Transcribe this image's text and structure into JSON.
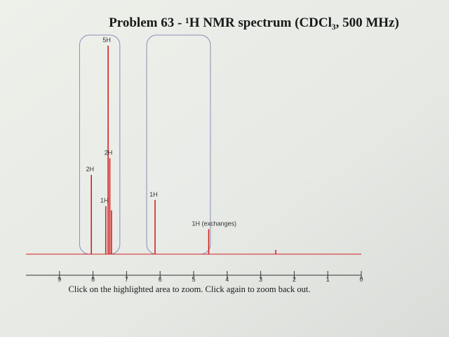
{
  "chart_data": {
    "type": "spectrum",
    "title": "Problem 63 - ¹H NMR spectrum (CDCl₃, 500 MHz)",
    "x": [
      8.05,
      7.62,
      7.55,
      7.5,
      7.45,
      6.15,
      4.55,
      2.55
    ],
    "series": [
      {
        "color": "#d42020",
        "values": [
          38,
          23,
          100,
          46,
          21,
          26,
          12,
          2
        ]
      }
    ],
    "peak_labels": [
      "2H",
      "1H",
      "5H",
      "2H",
      null,
      "1H",
      "1H (exchanges)",
      null
    ],
    "xlim": [
      10,
      0
    ],
    "xticks": [
      9,
      8,
      7,
      6,
      5,
      4,
      3,
      2,
      1,
      0
    ],
    "ylim": [
      0,
      100
    ],
    "zoom_regions": [
      [
        8.4,
        7.2
      ],
      [
        6.4,
        4.5
      ]
    ],
    "instruction": "Click on the highlighted area to zoom. Click again to zoom back out."
  }
}
